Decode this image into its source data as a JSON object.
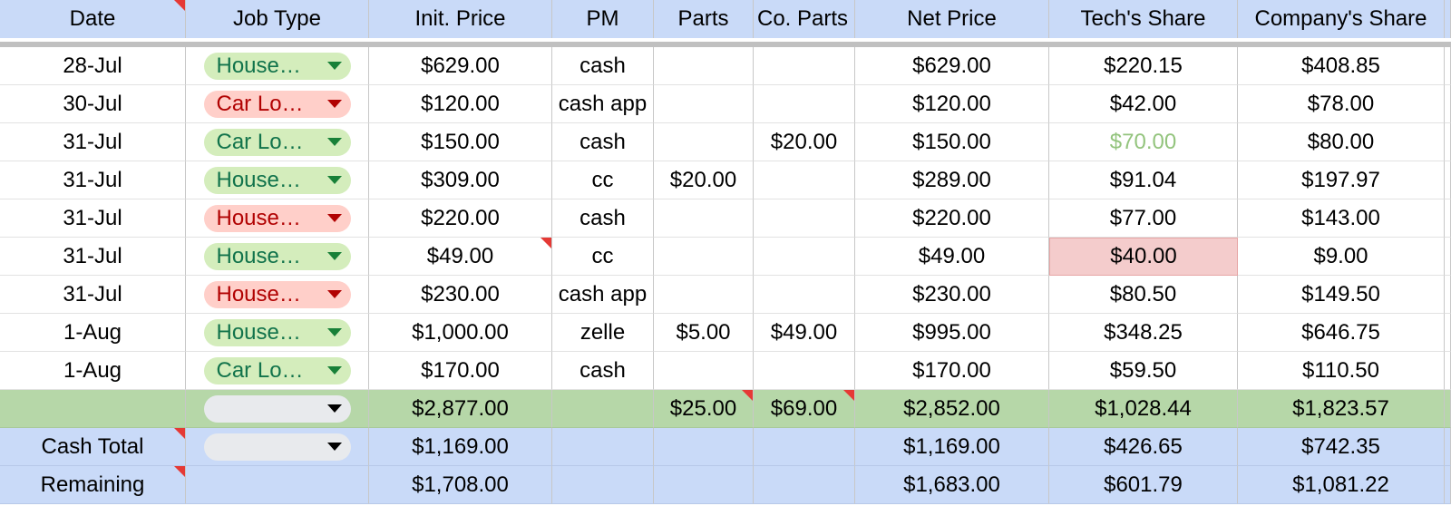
{
  "headers": [
    "Date",
    "Job Type",
    "Init. Price",
    "PM",
    "Parts",
    "Co. Parts",
    "Net Price",
    "Tech's Share",
    "Company's Share"
  ],
  "rows": [
    {
      "date": "28-Jul",
      "job": "House…",
      "job_color": "green",
      "init": "$629.00",
      "pm": "cash",
      "parts": "",
      "coparts": "",
      "net": "$629.00",
      "tech": "$220.15",
      "company": "$408.85"
    },
    {
      "date": "30-Jul",
      "job": "Car Lo…",
      "job_color": "red",
      "init": "$120.00",
      "pm": "cash app",
      "parts": "",
      "coparts": "",
      "net": "$120.00",
      "tech": "$42.00",
      "company": "$78.00"
    },
    {
      "date": "31-Jul",
      "job": "Car Lo…",
      "job_color": "green",
      "init": "$150.00",
      "pm": "cash",
      "parts": "",
      "coparts": "$20.00",
      "net": "$150.00",
      "tech": "$70.00",
      "company": "$80.00"
    },
    {
      "date": "31-Jul",
      "job": "House…",
      "job_color": "green",
      "init": "$309.00",
      "pm": "cc",
      "parts": "$20.00",
      "coparts": "",
      "net": "$289.00",
      "tech": "$91.04",
      "company": "$197.97"
    },
    {
      "date": "31-Jul",
      "job": "House…",
      "job_color": "red",
      "init": "$220.00",
      "pm": "cash",
      "parts": "",
      "coparts": "",
      "net": "$220.00",
      "tech": "$77.00",
      "company": "$143.00"
    },
    {
      "date": "31-Jul",
      "job": "House…",
      "job_color": "green",
      "init": "$49.00",
      "pm": "cc",
      "parts": "",
      "coparts": "",
      "net": "$49.00",
      "tech": "$40.00",
      "company": "$9.00"
    },
    {
      "date": "31-Jul",
      "job": "House…",
      "job_color": "red",
      "init": "$230.00",
      "pm": "cash app",
      "parts": "",
      "coparts": "",
      "net": "$230.00",
      "tech": "$80.50",
      "company": "$149.50"
    },
    {
      "date": "1-Aug",
      "job": "House…",
      "job_color": "green",
      "init": "$1,000.00",
      "pm": "zelle",
      "parts": "$5.00",
      "coparts": "$49.00",
      "net": "$995.00",
      "tech": "$348.25",
      "company": "$646.75"
    },
    {
      "date": "1-Aug",
      "job": "Car Lo…",
      "job_color": "green",
      "init": "$170.00",
      "pm": "cash",
      "parts": "",
      "coparts": "",
      "net": "$170.00",
      "tech": "$59.50",
      "company": "$110.50"
    }
  ],
  "totals": {
    "init": "$2,877.00",
    "parts": "$25.00",
    "coparts": "$69.00",
    "net": "$2,852.00",
    "tech": "$1,028.44",
    "company": "$1,823.57"
  },
  "cash_total": {
    "label": "Cash Total",
    "init": "$1,169.00",
    "net": "$1,169.00",
    "tech": "$426.65",
    "company": "$742.35"
  },
  "remaining": {
    "label": "Remaining",
    "init": "$1,708.00",
    "net": "$1,683.00",
    "tech": "$601.79",
    "company": "$1,081.22"
  },
  "colors": {
    "header_bg": "#c9daf8",
    "total_bg": "#b6d7a8",
    "chip_green": "#d4edbc",
    "chip_red": "#ffcfc9",
    "note": "#e53935"
  }
}
